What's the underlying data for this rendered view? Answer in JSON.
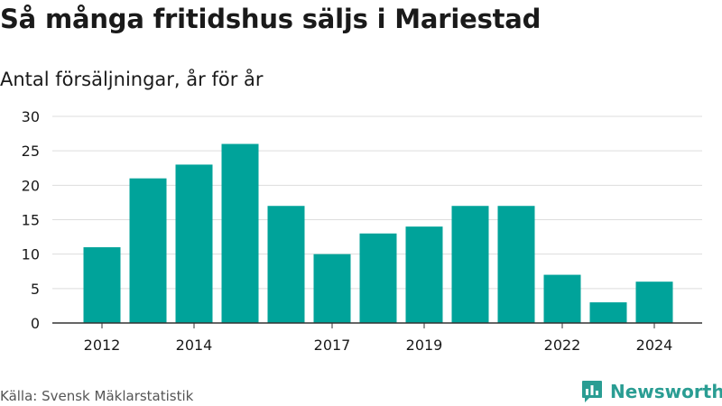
{
  "header": {
    "title": "Så många fritidshus säljs i Mariestad",
    "subtitle": "Antal försäljningar, år för år"
  },
  "footer": {
    "source": "Källa: Svensk Mäklarstatistik",
    "brand": "Newsworthy"
  },
  "colors": {
    "bar": "#00a39a",
    "brand": "#2a9d93",
    "grid": "#dddddd",
    "axis": "#333333"
  },
  "chart_data": {
    "type": "bar",
    "categories": [
      "2012",
      "2013",
      "2014",
      "2015",
      "2016",
      "2017",
      "2018",
      "2019",
      "2020",
      "2021",
      "2022",
      "2023",
      "2024"
    ],
    "tick_labels_shown": [
      "2012",
      "2014",
      "2017",
      "2019",
      "2022",
      "2024"
    ],
    "values": [
      11,
      21,
      23,
      26,
      17,
      10,
      13,
      14,
      17,
      17,
      7,
      3,
      6
    ],
    "ylim": [
      0,
      30
    ],
    "yticks": [
      0,
      5,
      10,
      15,
      20,
      25,
      30
    ],
    "grid": true
  }
}
